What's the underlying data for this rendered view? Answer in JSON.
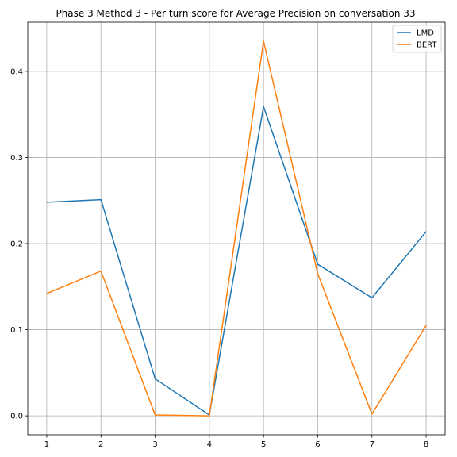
{
  "chart_data": {
    "type": "line",
    "title": "Phase 3 Method 3 - Per turn score for Average Precision on conversation 33",
    "xlabel": "",
    "ylabel": "",
    "x": [
      1,
      2,
      3,
      4,
      5,
      6,
      7,
      8
    ],
    "xlim": [
      0.65,
      8.35
    ],
    "ylim": [
      -0.022,
      0.457
    ],
    "yticks": [
      0.0,
      0.1,
      0.2,
      0.3,
      0.4
    ],
    "xticks": [
      1,
      2,
      3,
      4,
      5,
      6,
      7,
      8
    ],
    "grid": true,
    "legend_position": "top-right",
    "series": [
      {
        "name": "LMD",
        "color": "#1f77b4",
        "values": [
          0.248,
          0.251,
          0.043,
          0.001,
          0.359,
          0.176,
          0.137,
          0.214
        ]
      },
      {
        "name": "BERT",
        "color": "#ff7f0e",
        "values": [
          0.142,
          0.168,
          0.001,
          0.0,
          0.435,
          0.165,
          0.002,
          0.105
        ]
      }
    ]
  }
}
